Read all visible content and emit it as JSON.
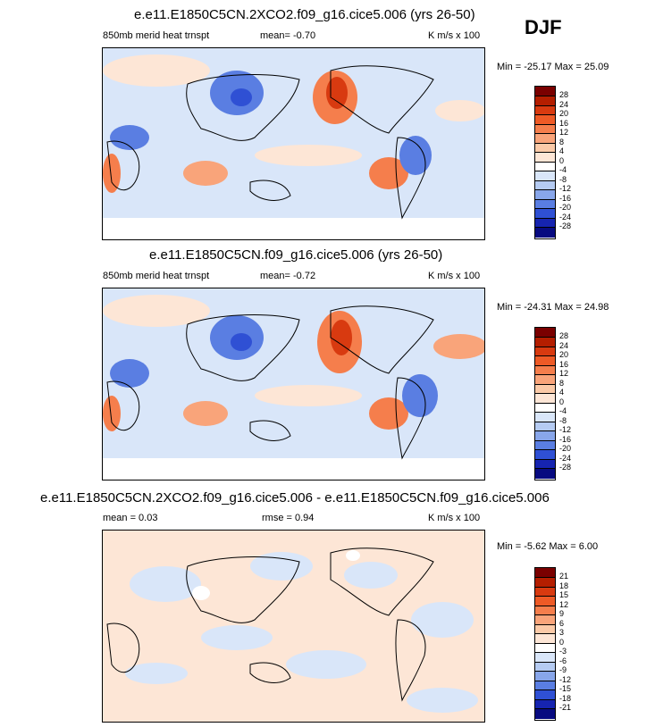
{
  "season": "DJF",
  "panels": [
    {
      "title": "e.e11.E1850C5CN.2XCO2.f09_g16.cice5.006 (yrs 26-50)",
      "left": "850mb merid heat trnspt",
      "stat": "mean=  -0.70",
      "units": "K m/s x 100",
      "minmax": "Min = -25.17 Max =  25.09",
      "levels": [
        "28",
        "24",
        "20",
        "16",
        "12",
        "8",
        "4",
        "0",
        "-4",
        "-8",
        "-12",
        "-16",
        "-20",
        "-24",
        "-28"
      ]
    },
    {
      "title": "e.e11.E1850C5CN.f09_g16.cice5.006 (yrs 26-50)",
      "left": "850mb merid heat trnspt",
      "stat": "mean=  -0.72",
      "units": "K m/s x 100",
      "minmax": "Min = -24.31 Max =  24.98",
      "levels": [
        "28",
        "24",
        "20",
        "16",
        "12",
        "8",
        "4",
        "0",
        "-4",
        "-8",
        "-12",
        "-16",
        "-20",
        "-24",
        "-28"
      ]
    },
    {
      "title": "e.e11.E1850C5CN.2XCO2.f09_g16.cice5.006 - e.e11.E1850C5CN.f09_g16.cice5.006",
      "left": "mean =  0.03",
      "stat": "rmse =  0.94",
      "units": "K m/s x 100",
      "minmax": "Min =  -5.62 Max =   6.00",
      "levels": [
        "21",
        "18",
        "15",
        "12",
        "9",
        "6",
        "3",
        "0",
        "-3",
        "-6",
        "-9",
        "-12",
        "-15",
        "-18",
        "-21"
      ]
    }
  ],
  "colors": {
    "scale": [
      "#7a0000",
      "#b41e00",
      "#d83a10",
      "#ee5a26",
      "#f57e4c",
      "#f9a47a",
      "#fbcaa8",
      "#fde6d6",
      "#ffffff",
      "#d9e6f9",
      "#b5cbf2",
      "#88a6ea",
      "#5a7ee2",
      "#2f50d4",
      "#1624b0",
      "#070a80"
    ],
    "land": "#000000"
  }
}
